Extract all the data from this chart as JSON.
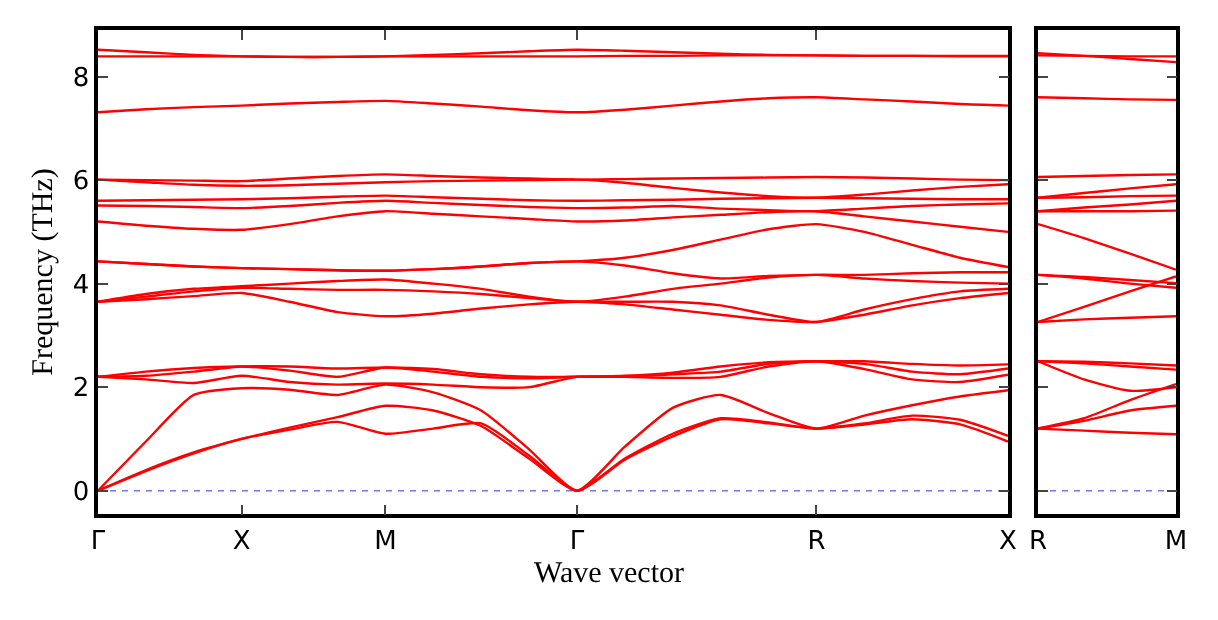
{
  "chart_data": [
    {
      "type": "line",
      "ylabel": "Frequency (THz)",
      "xlabel": "Wave vector",
      "categories": [
        "Γ",
        null,
        null,
        "X",
        null,
        null,
        "M",
        null,
        null,
        null,
        "Γ",
        null,
        null,
        null,
        null,
        "R",
        null,
        null,
        null,
        "X"
      ],
      "ylim": [
        -0.45,
        8.9
      ],
      "yticks": [
        0,
        2,
        4,
        6,
        8
      ],
      "grid": false,
      "line_style": "solid",
      "ref_lines": [
        {
          "axis": "y",
          "value": 0,
          "color": "#7777ee",
          "line_style": "dotted"
        }
      ],
      "series": [
        {
          "color": "#ff0000",
          "values": [
            0,
            0.38,
            0.72,
            1.0,
            1.18,
            1.33,
            1.1,
            1.2,
            1.3,
            0.68,
            0,
            0.6,
            1.05,
            1.38,
            1.3,
            1.2,
            1.28,
            1.38,
            1.28,
            0.95
          ]
        },
        {
          "color": "#ff0000",
          "values": [
            0,
            0.4,
            0.74,
            1.0,
            1.22,
            1.42,
            1.64,
            1.55,
            1.25,
            0.62,
            0,
            0.62,
            1.1,
            1.4,
            1.32,
            1.2,
            1.3,
            1.45,
            1.37,
            1.06
          ]
        },
        {
          "color": "#ff0000",
          "values": [
            0,
            0.95,
            1.85,
            1.98,
            1.95,
            1.85,
            2.05,
            1.9,
            1.55,
            0.8,
            0,
            0.85,
            1.6,
            1.85,
            1.5,
            1.2,
            1.45,
            1.65,
            1.82,
            1.94
          ]
        },
        {
          "color": "#ff0000",
          "values": [
            2.2,
            2.15,
            2.08,
            2.22,
            2.1,
            2.05,
            2.07,
            2.05,
            2.0,
            2.0,
            2.2,
            2.2,
            2.18,
            2.2,
            2.4,
            2.5,
            2.35,
            2.15,
            2.1,
            2.24
          ]
        },
        {
          "color": "#ff0000",
          "values": [
            2.2,
            2.22,
            2.3,
            2.4,
            2.32,
            2.2,
            2.38,
            2.3,
            2.2,
            2.17,
            2.2,
            2.2,
            2.25,
            2.3,
            2.45,
            2.5,
            2.45,
            2.3,
            2.25,
            2.36
          ]
        },
        {
          "color": "#ff0000",
          "values": [
            2.2,
            2.3,
            2.37,
            2.4,
            2.4,
            2.36,
            2.38,
            2.35,
            2.25,
            2.2,
            2.2,
            2.22,
            2.28,
            2.4,
            2.48,
            2.5,
            2.5,
            2.45,
            2.42,
            2.44
          ]
        },
        {
          "color": "#ff0000",
          "values": [
            3.65,
            3.7,
            3.76,
            3.82,
            3.65,
            3.45,
            3.37,
            3.42,
            3.52,
            3.6,
            3.65,
            3.6,
            3.5,
            3.4,
            3.3,
            3.26,
            3.4,
            3.58,
            3.72,
            3.82
          ]
        },
        {
          "color": "#ff0000",
          "values": [
            3.65,
            3.75,
            3.85,
            3.92,
            3.9,
            3.88,
            3.88,
            3.85,
            3.8,
            3.72,
            3.65,
            3.65,
            3.65,
            3.58,
            3.4,
            3.26,
            3.5,
            3.7,
            3.85,
            3.9
          ]
        },
        {
          "color": "#ff0000",
          "values": [
            3.65,
            3.8,
            3.9,
            3.95,
            4.0,
            4.05,
            4.08,
            4.0,
            3.9,
            3.75,
            3.65,
            3.75,
            3.9,
            4.0,
            4.12,
            4.17,
            4.1,
            4.05,
            4.02,
            4.0
          ]
        },
        {
          "color": "#ff0000",
          "values": [
            4.43,
            4.38,
            4.33,
            4.3,
            4.28,
            4.26,
            4.25,
            4.28,
            4.33,
            4.4,
            4.43,
            4.35,
            4.2,
            4.1,
            4.15,
            4.17,
            4.17,
            4.2,
            4.22,
            4.22
          ]
        },
        {
          "color": "#ff0000",
          "values": [
            4.43,
            4.38,
            4.33,
            4.3,
            4.28,
            4.26,
            4.25,
            4.28,
            4.33,
            4.4,
            4.43,
            4.5,
            4.65,
            4.85,
            5.05,
            5.15,
            5.0,
            4.75,
            4.5,
            4.32
          ]
        },
        {
          "color": "#ff0000",
          "values": [
            5.2,
            5.12,
            5.06,
            5.04,
            5.15,
            5.3,
            5.4,
            5.35,
            5.3,
            5.25,
            5.2,
            5.22,
            5.28,
            5.33,
            5.38,
            5.4,
            5.3,
            5.2,
            5.1,
            5.0
          ]
        },
        {
          "color": "#ff0000",
          "values": [
            5.51,
            5.5,
            5.48,
            5.46,
            5.5,
            5.56,
            5.6,
            5.56,
            5.52,
            5.48,
            5.46,
            5.47,
            5.5,
            5.45,
            5.42,
            5.4,
            5.45,
            5.5,
            5.53,
            5.55
          ]
        },
        {
          "color": "#ff0000",
          "values": [
            5.6,
            5.61,
            5.62,
            5.63,
            5.65,
            5.68,
            5.7,
            5.67,
            5.64,
            5.61,
            5.6,
            5.61,
            5.62,
            5.64,
            5.65,
            5.66,
            5.65,
            5.64,
            5.63,
            5.63
          ]
        },
        {
          "color": "#ff0000",
          "values": [
            6.01,
            5.96,
            5.91,
            5.89,
            5.9,
            5.93,
            5.96,
            5.98,
            5.99,
            6.0,
            6.01,
            5.95,
            5.85,
            5.76,
            5.69,
            5.66,
            5.72,
            5.8,
            5.87,
            5.92
          ]
        },
        {
          "color": "#ff0000",
          "values": [
            6.01,
            6.0,
            5.99,
            5.98,
            6.03,
            6.08,
            6.11,
            6.08,
            6.05,
            6.03,
            6.01,
            6.02,
            6.03,
            6.04,
            6.05,
            6.06,
            6.05,
            6.03,
            6.01,
            6.0
          ]
        },
        {
          "color": "#ff0000",
          "values": [
            7.31,
            7.37,
            7.41,
            7.44,
            7.48,
            7.51,
            7.53,
            7.48,
            7.42,
            7.35,
            7.31,
            7.36,
            7.44,
            7.52,
            7.58,
            7.6,
            7.56,
            7.52,
            7.47,
            7.44
          ]
        },
        {
          "color": "#ff0000",
          "values": [
            8.39,
            8.39,
            8.39,
            8.39,
            8.38,
            8.38,
            8.39,
            8.39,
            8.39,
            8.39,
            8.39,
            8.4,
            8.4,
            8.41,
            8.41,
            8.41,
            8.4,
            8.4,
            8.39,
            8.39
          ]
        },
        {
          "color": "#ff0000",
          "values": [
            8.52,
            8.47,
            8.42,
            8.39,
            8.38,
            8.38,
            8.39,
            8.42,
            8.45,
            8.49,
            8.52,
            8.5,
            8.47,
            8.44,
            8.42,
            8.41,
            8.4,
            8.4,
            8.4,
            8.4
          ]
        }
      ]
    },
    {
      "type": "line",
      "categories": [
        "R",
        null,
        null,
        "M"
      ],
      "ylim": [
        -0.45,
        8.9
      ],
      "yticks": [
        0,
        2,
        4,
        6,
        8
      ],
      "tick_labels": "x",
      "grid": false,
      "line_style": "solid",
      "ref_lines": [
        {
          "axis": "y",
          "value": 0,
          "color": "#7777ee",
          "line_style": "dotted"
        }
      ],
      "series": [
        {
          "color": "#ff0000",
          "values": [
            1.2,
            1.16,
            1.12,
            1.09
          ]
        },
        {
          "color": "#ff0000",
          "values": [
            1.2,
            1.35,
            1.55,
            1.64
          ]
        },
        {
          "color": "#ff0000",
          "values": [
            1.2,
            1.4,
            1.75,
            2.06
          ]
        },
        {
          "color": "#ff0000",
          "values": [
            2.5,
            2.15,
            1.93,
            2.0
          ]
        },
        {
          "color": "#ff0000",
          "values": [
            2.5,
            2.46,
            2.4,
            2.34
          ]
        },
        {
          "color": "#ff0000",
          "values": [
            2.5,
            2.49,
            2.46,
            2.42
          ]
        },
        {
          "color": "#ff0000",
          "values": [
            3.26,
            3.31,
            3.34,
            3.37
          ]
        },
        {
          "color": "#ff0000",
          "values": [
            3.26,
            3.55,
            3.85,
            4.14
          ]
        },
        {
          "color": "#ff0000",
          "values": [
            4.17,
            4.13,
            4.07,
            4.01
          ]
        },
        {
          "color": "#ff0000",
          "values": [
            4.17,
            4.1,
            4.0,
            3.92
          ]
        },
        {
          "color": "#ff0000",
          "values": [
            5.15,
            4.88,
            4.58,
            4.27
          ]
        },
        {
          "color": "#ff0000",
          "values": [
            5.4,
            5.4,
            5.4,
            5.41
          ]
        },
        {
          "color": "#ff0000",
          "values": [
            5.4,
            5.47,
            5.53,
            5.6
          ]
        },
        {
          "color": "#ff0000",
          "values": [
            5.66,
            5.67,
            5.69,
            5.7
          ]
        },
        {
          "color": "#ff0000",
          "values": [
            5.66,
            5.75,
            5.84,
            5.92
          ]
        },
        {
          "color": "#ff0000",
          "values": [
            6.06,
            6.08,
            6.1,
            6.11
          ]
        },
        {
          "color": "#ff0000",
          "values": [
            7.6,
            7.58,
            7.56,
            7.55
          ]
        },
        {
          "color": "#ff0000",
          "values": [
            8.41,
            8.4,
            8.39,
            8.39
          ]
        },
        {
          "color": "#ff0000",
          "values": [
            8.45,
            8.4,
            8.34,
            8.28
          ]
        }
      ]
    }
  ]
}
